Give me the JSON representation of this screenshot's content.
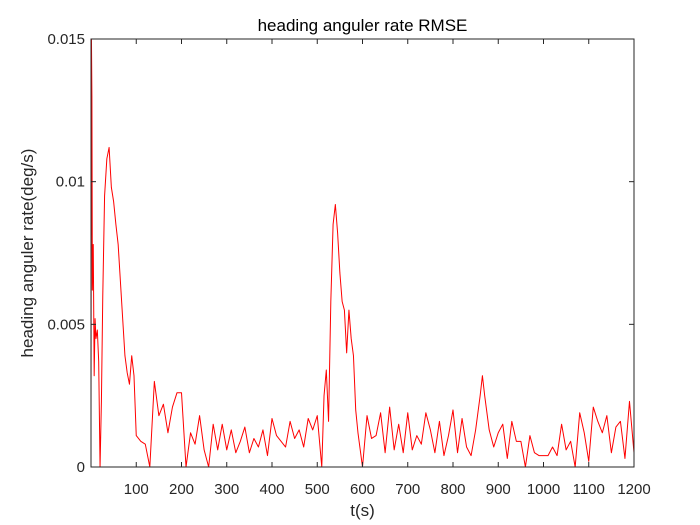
{
  "chart_data": {
    "type": "line",
    "title": "heading anguler rate RMSE",
    "xlabel": "t(s)",
    "ylabel": "heading anguler rate(deg/s)",
    "xlim": [
      0,
      1200
    ],
    "ylim": [
      0,
      0.015
    ],
    "x_ticks": [
      100,
      200,
      300,
      400,
      500,
      600,
      700,
      800,
      900,
      1000,
      1100,
      1200
    ],
    "x_tick_labels": [
      "100",
      "200",
      "300",
      "400",
      "500",
      "600",
      "700",
      "800",
      "900",
      "1000",
      "1100",
      "1200"
    ],
    "y_ticks": [
      0,
      0.005,
      0.01,
      0.015
    ],
    "y_tick_labels": [
      "0",
      "0.005",
      "0.01",
      "0.015"
    ],
    "grid": false,
    "box": true,
    "series": [
      {
        "color": "#ff0000",
        "x": [
          0,
          1,
          2,
          3,
          5,
          7,
          9,
          11,
          14,
          17,
          20,
          23,
          26,
          30,
          35,
          40,
          45,
          50,
          55,
          60,
          65,
          70,
          75,
          80,
          85,
          90,
          95,
          100,
          110,
          120,
          130,
          140,
          150,
          160,
          170,
          180,
          190,
          200,
          210,
          220,
          230,
          240,
          250,
          260,
          270,
          280,
          290,
          300,
          310,
          320,
          330,
          340,
          350,
          360,
          370,
          380,
          390,
          400,
          410,
          420,
          430,
          440,
          450,
          460,
          470,
          480,
          490,
          500,
          510,
          515,
          520,
          525,
          530,
          535,
          540,
          545,
          550,
          555,
          560,
          565,
          570,
          575,
          580,
          585,
          590,
          600,
          610,
          620,
          630,
          640,
          650,
          660,
          670,
          680,
          690,
          700,
          710,
          720,
          730,
          740,
          750,
          760,
          770,
          780,
          790,
          800,
          810,
          820,
          830,
          840,
          850,
          860,
          865,
          870,
          880,
          890,
          900,
          910,
          920,
          930,
          940,
          950,
          960,
          970,
          980,
          990,
          1000,
          1010,
          1020,
          1030,
          1040,
          1050,
          1060,
          1070,
          1080,
          1090,
          1100,
          1110,
          1120,
          1130,
          1140,
          1150,
          1160,
          1170,
          1180,
          1190,
          1200
        ],
        "values": [
          0.0015,
          0.015,
          0.013,
          0.0062,
          0.0078,
          0.0032,
          0.0052,
          0.0045,
          0.0048,
          0.0037,
          0.0,
          0.0023,
          0.006,
          0.0095,
          0.0108,
          0.0112,
          0.0098,
          0.0093,
          0.0085,
          0.0078,
          0.0065,
          0.0052,
          0.0039,
          0.0033,
          0.0029,
          0.0039,
          0.0032,
          0.0011,
          0.0009,
          0.0008,
          0.0,
          0.003,
          0.0018,
          0.0022,
          0.0012,
          0.0021,
          0.0026,
          0.0026,
          0.0,
          0.0012,
          0.0008,
          0.0018,
          0.0006,
          0.0,
          0.0015,
          0.0006,
          0.0015,
          0.0006,
          0.0013,
          0.0005,
          0.0009,
          0.0014,
          0.0005,
          0.001,
          0.0007,
          0.0013,
          0.0004,
          0.0017,
          0.0011,
          0.0009,
          0.0007,
          0.0016,
          0.001,
          0.0013,
          0.0007,
          0.0017,
          0.0013,
          0.0018,
          0.0,
          0.0025,
          0.0034,
          0.0016,
          0.0058,
          0.0085,
          0.0092,
          0.0082,
          0.0068,
          0.0058,
          0.0055,
          0.004,
          0.0055,
          0.0045,
          0.0039,
          0.002,
          0.0012,
          0.0,
          0.0018,
          0.001,
          0.0011,
          0.0019,
          0.0005,
          0.0021,
          0.0006,
          0.0015,
          0.0005,
          0.0019,
          0.0006,
          0.0011,
          0.0008,
          0.0019,
          0.0013,
          0.0005,
          0.0016,
          0.0004,
          0.0011,
          0.002,
          0.0005,
          0.0017,
          0.0007,
          0.0004,
          0.0013,
          0.0025,
          0.0032,
          0.0025,
          0.0013,
          0.0007,
          0.0012,
          0.0015,
          0.0003,
          0.0016,
          0.0009,
          0.0009,
          0.0,
          0.0011,
          0.0005,
          0.0004,
          0.0004,
          0.0004,
          0.0007,
          0.0004,
          0.0015,
          0.0006,
          0.0009,
          0.0,
          0.0019,
          0.0012,
          0.0002,
          0.0021,
          0.0016,
          0.0012,
          0.0018,
          0.0005,
          0.0014,
          0.0016,
          0.0003,
          0.0023,
          0.0005
        ]
      }
    ]
  }
}
